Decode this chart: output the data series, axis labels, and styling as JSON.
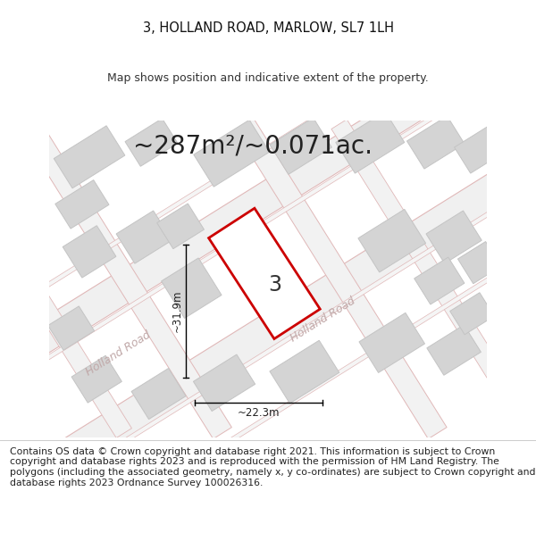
{
  "title": "3, HOLLAND ROAD, MARLOW, SL7 1LH",
  "subtitle": "Map shows position and indicative extent of the property.",
  "area_text": "~287m²/~0.071ac.",
  "property_number": "3",
  "dim_width": "~22.3m",
  "dim_height": "~31.9m",
  "road_label_lower": "Holland Road",
  "road_label_upper": "Holland Road",
  "footer": "Contains OS data © Crown copyright and database right 2021. This information is subject to Crown copyright and database rights 2023 and is reproduced with the permission of HM Land Registry. The polygons (including the associated geometry, namely x, y co-ordinates) are subject to Crown copyright and database rights 2023 Ordnance Survey 100026316.",
  "title_fontsize": 10.5,
  "subtitle_fontsize": 9,
  "area_fontsize": 20,
  "footer_fontsize": 7.8,
  "road_ang": 32,
  "map_bg": "#f8f8f8",
  "building_fill": "#d4d4d4",
  "building_edge": "#c4c4c4",
  "road_line_color": "#e0b8b8",
  "property_edge": "#cc0000",
  "property_fill": "#ffffff",
  "dim_color": "#222222",
  "text_color": "#333333"
}
